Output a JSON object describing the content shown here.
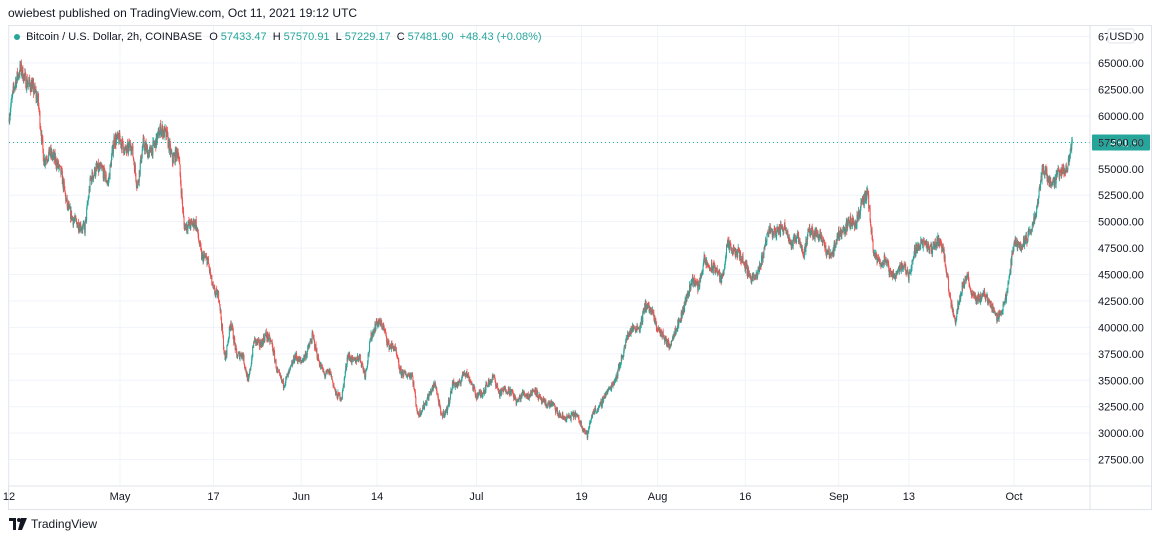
{
  "publisher": {
    "text": "owiebest published on TradingView.com, Oct 11, 2021 19:12 UTC"
  },
  "legend": {
    "symbol": "Bitcoin / U.S. Dollar, 2h, COINBASE",
    "o_label": "O",
    "o_value": "57433.47",
    "h_label": "H",
    "h_value": "57570.91",
    "l_label": "L",
    "l_value": "57229.17",
    "c_label": "C",
    "c_value": "57481.90",
    "change": "+48.43 (+0.08%)"
  },
  "brand": {
    "text": "TradingView"
  },
  "colors": {
    "up": "#26a69a",
    "down": "#ef5350",
    "grid": "#f0f3fa",
    "last_price_line": "#26a69a"
  },
  "chart_data": {
    "type": "candlestick",
    "title": "Bitcoin / U.S. Dollar, 2h, COINBASE",
    "currency_label": "USD",
    "ylim": [
      25000,
      68500
    ],
    "y_ticks": [
      "27500.00",
      "30000.00",
      "32500.00",
      "35000.00",
      "37500.00",
      "40000.00",
      "42500.00",
      "45000.00",
      "47500.00",
      "50000.00",
      "52500.00",
      "55000.00",
      "57500.00",
      "60000.00",
      "62500.00",
      "65000.00",
      "67500.00"
    ],
    "x_range": [
      "2021-04-12",
      "2021-10-14"
    ],
    "x_ticks": [
      {
        "label": "12",
        "date": "2021-04-12"
      },
      {
        "label": "May",
        "date": "2021-05-01"
      },
      {
        "label": "17",
        "date": "2021-05-17"
      },
      {
        "label": "Jun",
        "date": "2021-06-01"
      },
      {
        "label": "14",
        "date": "2021-06-14"
      },
      {
        "label": "Jul",
        "date": "2021-07-01"
      },
      {
        "label": "19",
        "date": "2021-07-19"
      },
      {
        "label": "Aug",
        "date": "2021-08-01"
      },
      {
        "label": "16",
        "date": "2021-08-16"
      },
      {
        "label": "Sep",
        "date": "2021-09-01"
      },
      {
        "label": "13",
        "date": "2021-09-13"
      },
      {
        "label": "Oct",
        "date": "2021-10-01"
      }
    ],
    "last_price": 57481.9,
    "last_price_label": "57481.90",
    "price_path": [
      [
        "2021-04-12",
        59800
      ],
      [
        "2021-04-13",
        63000
      ],
      [
        "2021-04-14",
        64500
      ],
      [
        "2021-04-15",
        63200
      ],
      [
        "2021-04-16",
        62800
      ],
      [
        "2021-04-17",
        61500
      ],
      [
        "2021-04-18",
        55800
      ],
      [
        "2021-04-19",
        56500
      ],
      [
        "2021-04-20",
        55800
      ],
      [
        "2021-04-21",
        54500
      ],
      [
        "2021-04-22",
        51500
      ],
      [
        "2021-04-23",
        50200
      ],
      [
        "2021-04-24",
        49700
      ],
      [
        "2021-04-25",
        49300
      ],
      [
        "2021-04-26",
        54000
      ],
      [
        "2021-04-27",
        55000
      ],
      [
        "2021-04-28",
        54900
      ],
      [
        "2021-04-29",
        53600
      ],
      [
        "2021-04-30",
        57700
      ],
      [
        "2021-05-01",
        57800
      ],
      [
        "2021-05-02",
        56600
      ],
      [
        "2021-05-03",
        57300
      ],
      [
        "2021-05-04",
        53300
      ],
      [
        "2021-05-05",
        57400
      ],
      [
        "2021-05-06",
        56400
      ],
      [
        "2021-05-07",
        57300
      ],
      [
        "2021-05-08",
        58800
      ],
      [
        "2021-05-09",
        58200
      ],
      [
        "2021-05-10",
        55800
      ],
      [
        "2021-05-11",
        56700
      ],
      [
        "2021-05-12",
        49600
      ],
      [
        "2021-05-13",
        49700
      ],
      [
        "2021-05-14",
        49900
      ],
      [
        "2021-05-15",
        46700
      ],
      [
        "2021-05-16",
        46400
      ],
      [
        "2021-05-17",
        43500
      ],
      [
        "2021-05-18",
        42900
      ],
      [
        "2021-05-19",
        36800
      ],
      [
        "2021-05-20",
        40600
      ],
      [
        "2021-05-21",
        37300
      ],
      [
        "2021-05-22",
        37500
      ],
      [
        "2021-05-23",
        34800
      ],
      [
        "2021-05-24",
        38800
      ],
      [
        "2021-05-25",
        38300
      ],
      [
        "2021-05-26",
        39300
      ],
      [
        "2021-05-27",
        38500
      ],
      [
        "2021-05-28",
        35700
      ],
      [
        "2021-05-29",
        34600
      ],
      [
        "2021-05-30",
        35700
      ],
      [
        "2021-05-31",
        37300
      ],
      [
        "2021-06-01",
        36700
      ],
      [
        "2021-06-02",
        37600
      ],
      [
        "2021-06-03",
        39200
      ],
      [
        "2021-06-04",
        36900
      ],
      [
        "2021-06-05",
        35500
      ],
      [
        "2021-06-06",
        35800
      ],
      [
        "2021-06-07",
        33600
      ],
      [
        "2021-06-08",
        33400
      ],
      [
        "2021-06-09",
        37400
      ],
      [
        "2021-06-10",
        36700
      ],
      [
        "2021-06-11",
        37300
      ],
      [
        "2021-06-12",
        35500
      ],
      [
        "2021-06-13",
        39100
      ],
      [
        "2021-06-14",
        40500
      ],
      [
        "2021-06-15",
        40200
      ],
      [
        "2021-06-16",
        38300
      ],
      [
        "2021-06-17",
        38100
      ],
      [
        "2021-06-18",
        35800
      ],
      [
        "2021-06-19",
        35500
      ],
      [
        "2021-06-20",
        35600
      ],
      [
        "2021-06-21",
        31700
      ],
      [
        "2021-06-22",
        32500
      ],
      [
        "2021-06-23",
        33700
      ],
      [
        "2021-06-24",
        34700
      ],
      [
        "2021-06-25",
        31600
      ],
      [
        "2021-06-26",
        32200
      ],
      [
        "2021-06-27",
        34700
      ],
      [
        "2021-06-28",
        34500
      ],
      [
        "2021-06-29",
        35900
      ],
      [
        "2021-06-30",
        35000
      ],
      [
        "2021-07-01",
        33500
      ],
      [
        "2021-07-02",
        33800
      ],
      [
        "2021-07-03",
        34700
      ],
      [
        "2021-07-04",
        35300
      ],
      [
        "2021-07-05",
        33700
      ],
      [
        "2021-07-06",
        34200
      ],
      [
        "2021-07-07",
        33900
      ],
      [
        "2021-07-08",
        32900
      ],
      [
        "2021-07-09",
        33800
      ],
      [
        "2021-07-10",
        33500
      ],
      [
        "2021-07-11",
        34200
      ],
      [
        "2021-07-12",
        33100
      ],
      [
        "2021-07-13",
        32700
      ],
      [
        "2021-07-14",
        32800
      ],
      [
        "2021-07-15",
        31800
      ],
      [
        "2021-07-16",
        31400
      ],
      [
        "2021-07-17",
        31500
      ],
      [
        "2021-07-18",
        31800
      ],
      [
        "2021-07-19",
        30800
      ],
      [
        "2021-07-20",
        29800
      ],
      [
        "2021-07-21",
        32100
      ],
      [
        "2021-07-22",
        32300
      ],
      [
        "2021-07-23",
        33600
      ],
      [
        "2021-07-24",
        34300
      ],
      [
        "2021-07-25",
        35400
      ],
      [
        "2021-07-26",
        37300
      ],
      [
        "2021-07-27",
        39400
      ],
      [
        "2021-07-28",
        40000
      ],
      [
        "2021-07-29",
        40000
      ],
      [
        "2021-07-30",
        42200
      ],
      [
        "2021-07-31",
        41500
      ],
      [
        "2021-08-01",
        39900
      ],
      [
        "2021-08-02",
        39200
      ],
      [
        "2021-08-03",
        38200
      ],
      [
        "2021-08-04",
        39700
      ],
      [
        "2021-08-05",
        40900
      ],
      [
        "2021-08-06",
        42800
      ],
      [
        "2021-08-07",
        44600
      ],
      [
        "2021-08-08",
        43800
      ],
      [
        "2021-08-09",
        46300
      ],
      [
        "2021-08-10",
        45600
      ],
      [
        "2021-08-11",
        45600
      ],
      [
        "2021-08-12",
        44400
      ],
      [
        "2021-08-13",
        47800
      ],
      [
        "2021-08-14",
        47100
      ],
      [
        "2021-08-15",
        47000
      ],
      [
        "2021-08-16",
        45900
      ],
      [
        "2021-08-17",
        44700
      ],
      [
        "2021-08-18",
        44700
      ],
      [
        "2021-08-19",
        46700
      ],
      [
        "2021-08-20",
        49300
      ],
      [
        "2021-08-21",
        48900
      ],
      [
        "2021-08-22",
        49300
      ],
      [
        "2021-08-23",
        49500
      ],
      [
        "2021-08-24",
        47700
      ],
      [
        "2021-08-25",
        48900
      ],
      [
        "2021-08-26",
        46900
      ],
      [
        "2021-08-27",
        49100
      ],
      [
        "2021-08-28",
        48900
      ],
      [
        "2021-08-29",
        48800
      ],
      [
        "2021-08-30",
        46900
      ],
      [
        "2021-08-31",
        47100
      ],
      [
        "2021-09-01",
        48800
      ],
      [
        "2021-09-02",
        49300
      ],
      [
        "2021-09-03",
        50000
      ],
      [
        "2021-09-04",
        49900
      ],
      [
        "2021-09-05",
        51700
      ],
      [
        "2021-09-06",
        52700
      ],
      [
        "2021-09-07",
        46900
      ],
      [
        "2021-09-08",
        46100
      ],
      [
        "2021-09-09",
        46400
      ],
      [
        "2021-09-10",
        44800
      ],
      [
        "2021-09-11",
        45200
      ],
      [
        "2021-09-12",
        46000
      ],
      [
        "2021-09-13",
        44900
      ],
      [
        "2021-09-14",
        47100
      ],
      [
        "2021-09-15",
        48100
      ],
      [
        "2021-09-16",
        47700
      ],
      [
        "2021-09-17",
        47300
      ],
      [
        "2021-09-18",
        48300
      ],
      [
        "2021-09-19",
        47300
      ],
      [
        "2021-09-20",
        43000
      ],
      [
        "2021-09-21",
        40700
      ],
      [
        "2021-09-22",
        43600
      ],
      [
        "2021-09-23",
        44900
      ],
      [
        "2021-09-24",
        42800
      ],
      [
        "2021-09-25",
        42700
      ],
      [
        "2021-09-26",
        43200
      ],
      [
        "2021-09-27",
        42200
      ],
      [
        "2021-09-28",
        41000
      ],
      [
        "2021-09-29",
        41500
      ],
      [
        "2021-09-30",
        43800
      ],
      [
        "2021-10-01",
        48100
      ],
      [
        "2021-10-02",
        47700
      ],
      [
        "2021-10-03",
        48200
      ],
      [
        "2021-10-04",
        49200
      ],
      [
        "2021-10-05",
        51500
      ],
      [
        "2021-10-06",
        55300
      ],
      [
        "2021-10-07",
        53800
      ],
      [
        "2021-10-08",
        53900
      ],
      [
        "2021-10-09",
        54900
      ],
      [
        "2021-10-10",
        54700
      ],
      [
        "2021-10-11",
        57480
      ]
    ]
  }
}
